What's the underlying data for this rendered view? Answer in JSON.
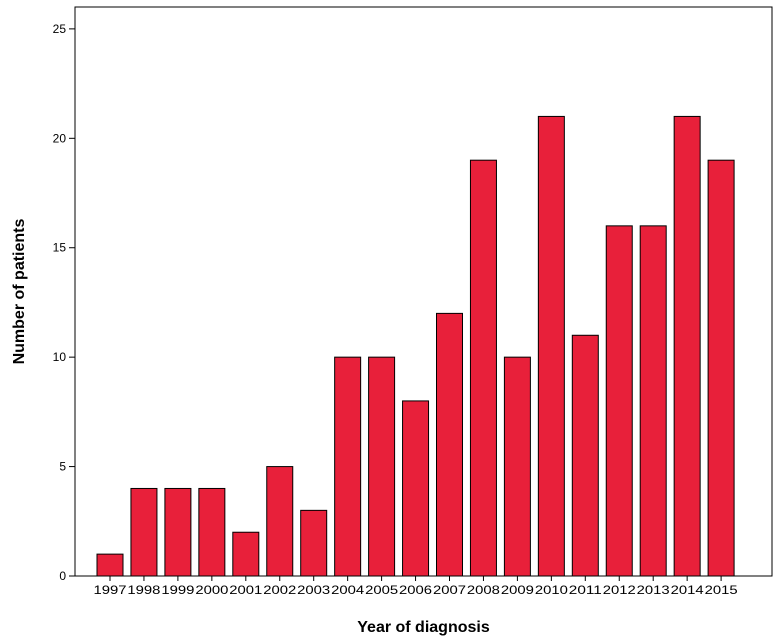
{
  "chart_data": {
    "type": "bar",
    "title": "",
    "xlabel": "Year of diagnosis",
    "ylabel": "Number of patients",
    "categories": [
      "1997",
      "1998",
      "1999",
      "2000",
      "2001",
      "2002",
      "2003",
      "2004",
      "2005",
      "2006",
      "2007",
      "2008",
      "2009",
      "2010",
      "2011",
      "2012",
      "2013",
      "2014",
      "2015"
    ],
    "values": [
      1,
      4,
      4,
      4,
      2,
      5,
      3,
      10,
      10,
      8,
      12,
      19,
      10,
      21,
      11,
      16,
      16,
      21,
      19
    ],
    "ylim": [
      0,
      26
    ],
    "yticks": [
      0,
      5,
      10,
      15,
      20,
      25
    ],
    "grid": false,
    "legend": "none",
    "bar_color": "#e8203a",
    "bar_edge_color": "#000000"
  }
}
